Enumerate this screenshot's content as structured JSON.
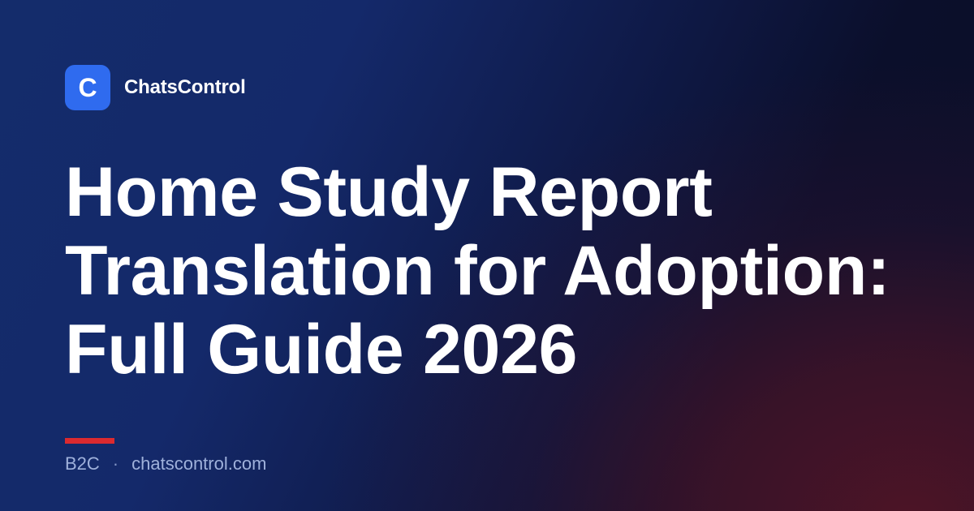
{
  "brand": {
    "logo_letter": "C",
    "name": "ChatsControl",
    "logo_color": "#2f6bef"
  },
  "title": {
    "lines": [
      "Home Study Report",
      "Translation for Adoption:",
      "Full Guide 2026"
    ]
  },
  "footer": {
    "category": "B2C",
    "separator": "·",
    "domain": "chatscontrol.com"
  },
  "colors": {
    "accent_bar": "#dc2a2f",
    "background_top_left": "#142c6b",
    "background_top_right": "#0b0f2b",
    "background_bottom_right": "#4a1527",
    "footer_text": "#9fb1db"
  }
}
